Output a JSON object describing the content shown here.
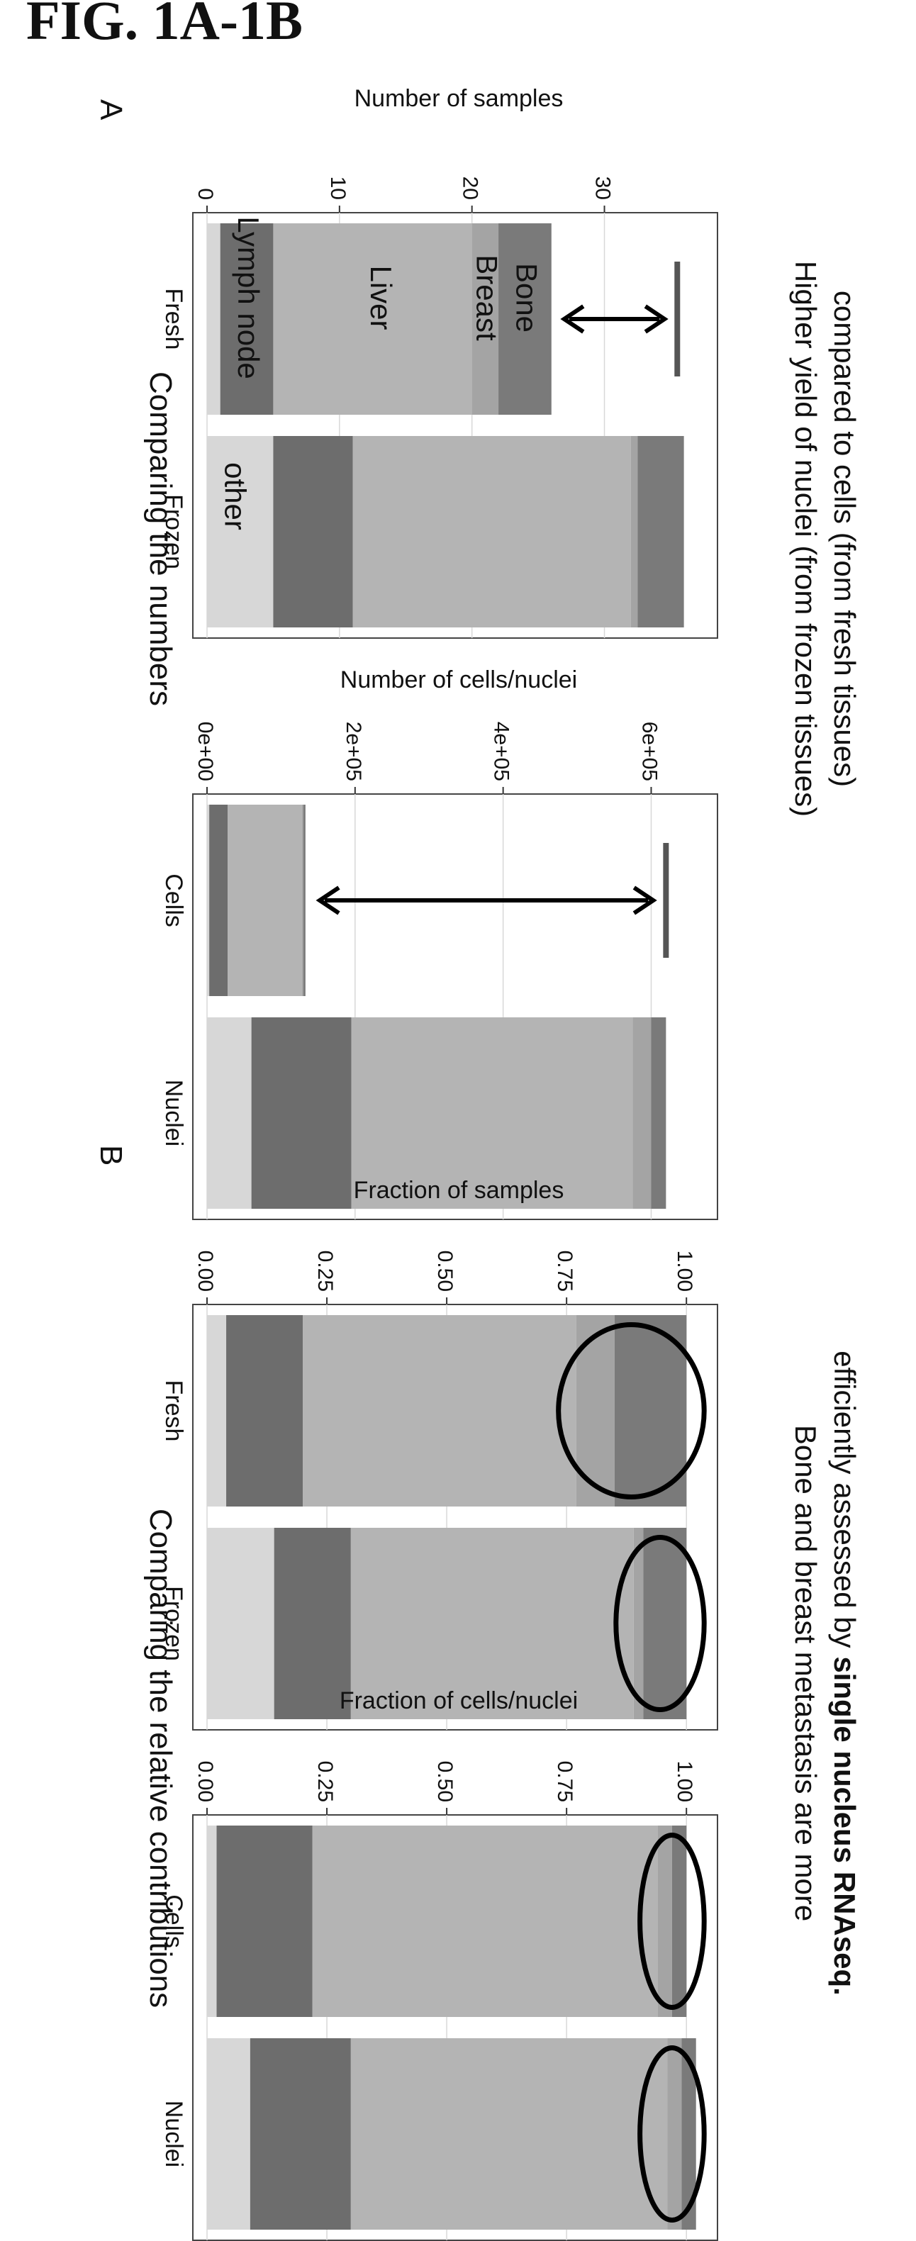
{
  "figure_title": "FIG. 1A-1B",
  "panel_a_label": "A",
  "panel_b_label": "B",
  "captions": {
    "panel_a_title": "Comparing the numbers",
    "panel_b_title": "Comparing the relative contributions",
    "panel_a_note_line1": "Higher yield of nuclei (from frozen tissues)",
    "panel_a_note_line2": "compared to cells (from fresh tissues)",
    "panel_b_note_line1": "Bone and breast metastasis are more",
    "panel_b_note_line2_prefix": "efficiently assessed by ",
    "panel_b_note_line2_bold": "single nucleus RNAseq."
  },
  "colors": {
    "other": "#d7d7d7",
    "lymph_node": "#6d6d6d",
    "liver": "#b4b4b4",
    "breast": "#a4a4a4",
    "bone": "#7a7a7a",
    "text": "#111111"
  },
  "segment_labels": [
    "other",
    "Lymph node",
    "Liver",
    "Breast",
    "Bone"
  ],
  "chart_data": [
    {
      "type": "bar",
      "stacked": true,
      "ylabel": "Number of samples",
      "categories": [
        "Fresh",
        "Frozen"
      ],
      "yticks": [
        "0",
        "10",
        "20",
        "30"
      ],
      "ylim": [
        0,
        38
      ],
      "grid": true,
      "series": [
        {
          "name": "other",
          "values": [
            1,
            5
          ]
        },
        {
          "name": "Lymph node",
          "values": [
            4,
            6
          ]
        },
        {
          "name": "Liver",
          "values": [
            15,
            21
          ]
        },
        {
          "name": "Breast",
          "values": [
            2,
            0.5
          ]
        },
        {
          "name": "Bone",
          "values": [
            4,
            3.5
          ]
        }
      ],
      "inline_labels": [
        "Bone",
        "Breast",
        "Liver",
        "Lymph node",
        "other"
      ],
      "annotation": {
        "type": "double-arrow",
        "from": [
          35.5,
          26
        ]
      }
    },
    {
      "type": "bar",
      "stacked": true,
      "ylabel": "Number of cells/nuclei",
      "categories": [
        "Cells",
        "Nuclei"
      ],
      "yticks": [
        "0e+00",
        "2e+05",
        "4e+05",
        "6e+05"
      ],
      "ylim": [
        0,
        680000
      ],
      "grid": true,
      "series": [
        {
          "name": "other",
          "values": [
            3000,
            60000
          ]
        },
        {
          "name": "Lymph node",
          "values": [
            25000,
            135000
          ]
        },
        {
          "name": "Liver",
          "values": [
            100000,
            380000
          ]
        },
        {
          "name": "Breast",
          "values": [
            2000,
            25000
          ]
        },
        {
          "name": "Bone",
          "values": [
            3000,
            20000
          ]
        }
      ],
      "annotation": {
        "type": "double-arrow",
        "from": [
          620000,
          135000
        ]
      }
    },
    {
      "type": "bar",
      "stacked": true,
      "ylabel": "Fraction of samples",
      "categories": [
        "Fresh",
        "Frozen"
      ],
      "yticks": [
        "0.00",
        "0.25",
        "0.50",
        "0.75",
        "1.00"
      ],
      "ylim": [
        0,
        1.05
      ],
      "grid": true,
      "series": [
        {
          "name": "other",
          "values": [
            0.04,
            0.14
          ]
        },
        {
          "name": "Lymph node",
          "values": [
            0.16,
            0.16
          ]
        },
        {
          "name": "Liver",
          "values": [
            0.57,
            0.59
          ]
        },
        {
          "name": "Breast",
          "values": [
            0.08,
            0.02
          ]
        },
        {
          "name": "Bone",
          "values": [
            0.15,
            0.09
          ]
        }
      ],
      "highlight": "ellipse around Breast and Bone segments"
    },
    {
      "type": "bar",
      "stacked": true,
      "ylabel": "Fraction of cells/nuclei",
      "categories": [
        "Cells",
        "Nuclei"
      ],
      "yticks": [
        "0.00",
        "0.25",
        "0.50",
        "0.75",
        "1.00"
      ],
      "ylim": [
        0,
        1.05
      ],
      "grid": true,
      "series": [
        {
          "name": "other",
          "values": [
            0.02,
            0.09
          ]
        },
        {
          "name": "Lymph node",
          "values": [
            0.2,
            0.21
          ]
        },
        {
          "name": "Liver",
          "values": [
            0.72,
            0.66
          ]
        },
        {
          "name": "Breast",
          "values": [
            0.03,
            0.03
          ]
        },
        {
          "name": "Bone",
          "values": [
            0.03,
            0.03
          ]
        }
      ],
      "highlight": "ellipse around Breast and Bone segments"
    }
  ]
}
